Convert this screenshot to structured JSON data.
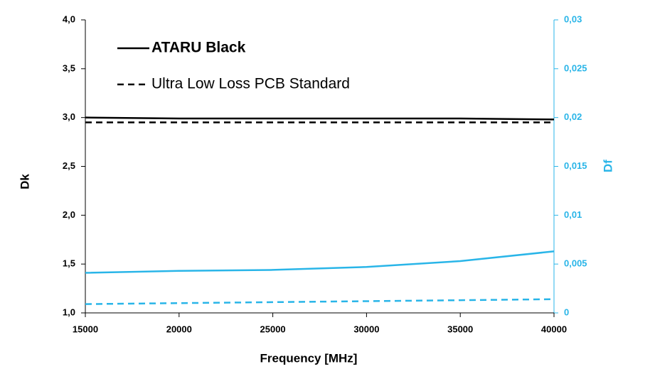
{
  "chart_data": {
    "type": "line",
    "xlabel": "Frequency [MHz]",
    "ylabel": "Dk",
    "y2label": "Df",
    "x": [
      15000,
      20000,
      25000,
      30000,
      35000,
      40000
    ],
    "xlim": [
      15000,
      40000
    ],
    "xticks": [
      15000,
      20000,
      25000,
      30000,
      35000,
      40000
    ],
    "ylim": [
      1.0,
      4.0
    ],
    "yticks": [
      {
        "value": 1.0,
        "label": "1,0"
      },
      {
        "value": 1.5,
        "label": "1,5"
      },
      {
        "value": 2.0,
        "label": "2,0"
      },
      {
        "value": 2.5,
        "label": "2,5"
      },
      {
        "value": 3.0,
        "label": "3,0"
      },
      {
        "value": 3.5,
        "label": "3,5"
      },
      {
        "value": 4.0,
        "label": "4,0"
      }
    ],
    "y2lim": [
      0,
      0.03
    ],
    "y2ticks": [
      0,
      {
        "value": 0.005,
        "label": "0,005"
      },
      {
        "value": 0.01,
        "label": "0,01"
      },
      {
        "value": 0.015,
        "label": "0,015"
      },
      {
        "value": 0.02,
        "label": "0,02"
      },
      {
        "value": 0.025,
        "label": "0,025"
      },
      {
        "value": 0.03,
        "label": "0,03"
      }
    ],
    "y2color": "#29b5e8",
    "legend": "upper left",
    "series": [
      {
        "name": "ATARU Black",
        "color": "#000000",
        "dash": false,
        "values": [
          3.0,
          2.99,
          2.99,
          2.99,
          2.99,
          2.98
        ]
      },
      {
        "name": "Ultra Low Loss PCB Standard",
        "color": "#000000",
        "dash": true,
        "values": [
          2.95,
          2.95,
          2.95,
          2.95,
          2.95,
          2.95
        ]
      },
      {
        "color": "#29b5e8",
        "dash": false,
        "axis": "y2",
        "values": [
          0.0041,
          0.0043,
          0.0044,
          0.0047,
          0.0053,
          0.0063
        ]
      },
      {
        "color": "#29b5e8",
        "dash": true,
        "axis": "y2",
        "values": [
          0.0009,
          0.001,
          0.0011,
          0.0012,
          0.0013,
          0.0014
        ]
      }
    ]
  }
}
